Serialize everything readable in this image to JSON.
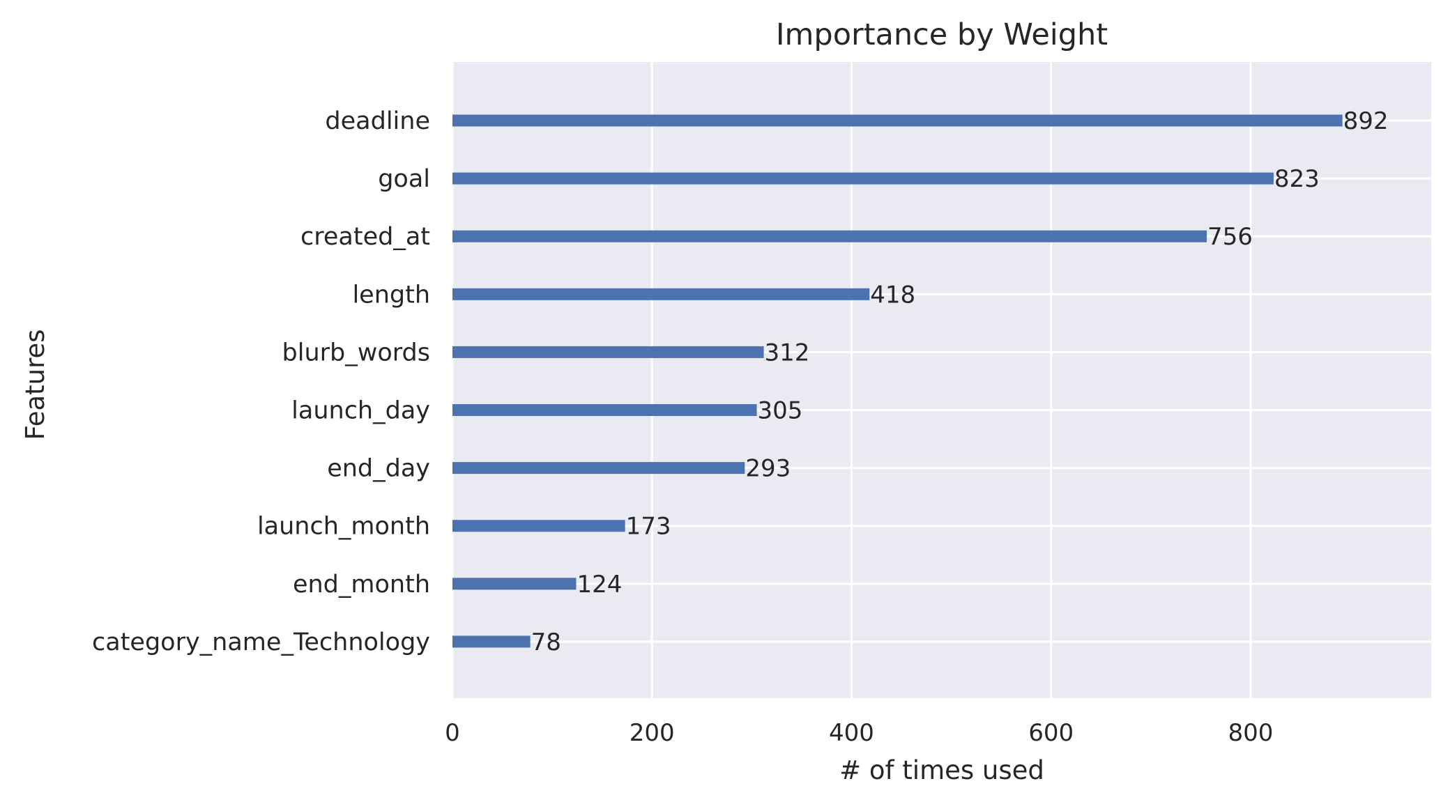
{
  "chart_data": {
    "type": "bar",
    "orientation": "horizontal",
    "title": "Importance by Weight",
    "xlabel": "# of times used",
    "ylabel": "Features",
    "categories": [
      "deadline",
      "goal",
      "created_at",
      "length",
      "blurb_words",
      "launch_day",
      "end_day",
      "launch_month",
      "end_month",
      "category_name_Technology"
    ],
    "values": [
      892,
      823,
      756,
      418,
      312,
      305,
      293,
      173,
      124,
      78
    ],
    "xlim": [
      0,
      981
    ],
    "xticks": [
      0,
      200,
      400,
      600,
      800
    ],
    "grid": true,
    "colors": {
      "bar": "#4c72b0",
      "background": "#eaeaf2",
      "grid": "#ffffff",
      "text": "#262626"
    }
  }
}
